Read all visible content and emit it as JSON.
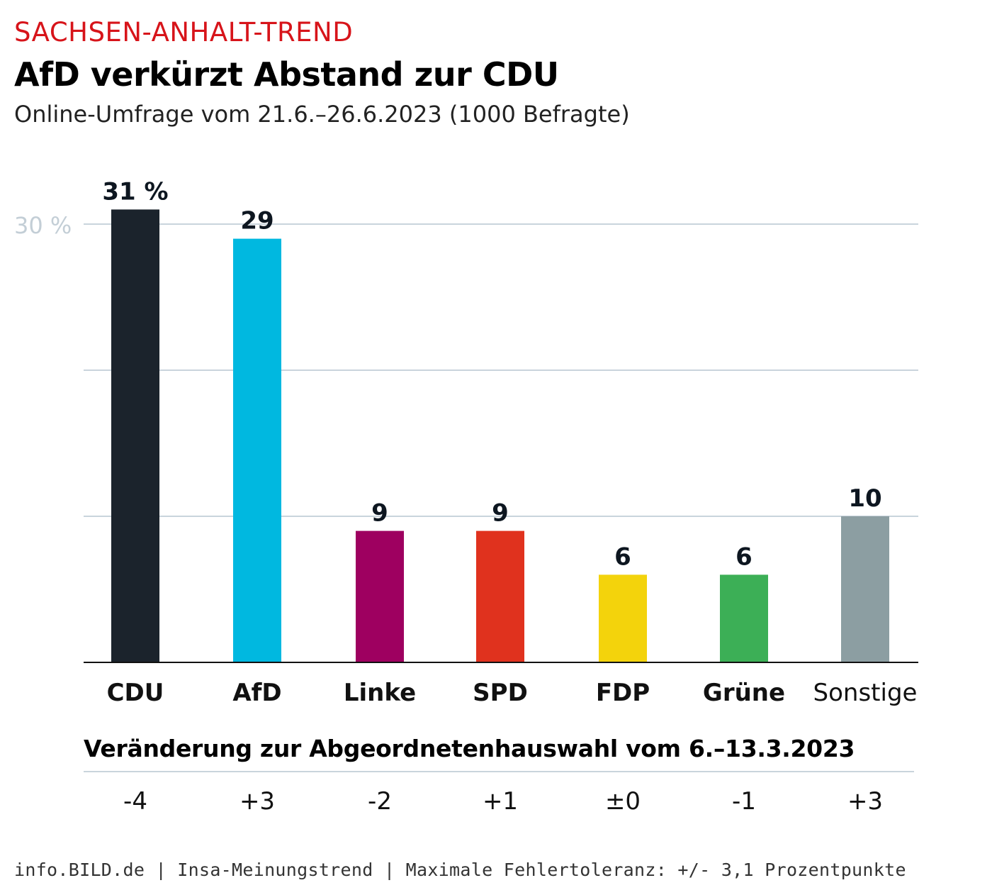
{
  "header": {
    "kicker": "SACHSEN-ANHALT-TREND",
    "title": "AfD verkürzt Abstand zur CDU",
    "subtitle": "Online-Umfrage vom 21.6.–26.6.2023 (1000 Befragte)"
  },
  "chart_data": {
    "type": "bar",
    "categories": [
      "CDU",
      "AfD",
      "Linke",
      "SPD",
      "FDP",
      "Grüne",
      "Sonstige"
    ],
    "values": [
      31,
      29,
      9,
      9,
      6,
      6,
      10
    ],
    "value_labels": [
      "31 %",
      "29",
      "9",
      "9",
      "6",
      "6",
      "10"
    ],
    "colors": [
      "#1b232c",
      "#00b8e0",
      "#9e0060",
      "#e0321e",
      "#f3d30c",
      "#3caf56",
      "#8c9ea2"
    ],
    "category_bold": [
      true,
      true,
      true,
      true,
      true,
      true,
      false
    ],
    "ylim": [
      0,
      30
    ],
    "gridlines": [
      10,
      20,
      30
    ],
    "ytick_label": "30 %",
    "grid": true
  },
  "changes": {
    "heading": "Veränderung zur Abgeordnetenhauswahl vom 6.–13.3.2023",
    "values": [
      "-4",
      "+3",
      "-2",
      "+1",
      "±0",
      "-1",
      "+3"
    ]
  },
  "footer": "info.BILD.de | Insa-Meinungstrend | Maximale Fehlertoleranz: +/- 3,1 Prozentpunkte"
}
